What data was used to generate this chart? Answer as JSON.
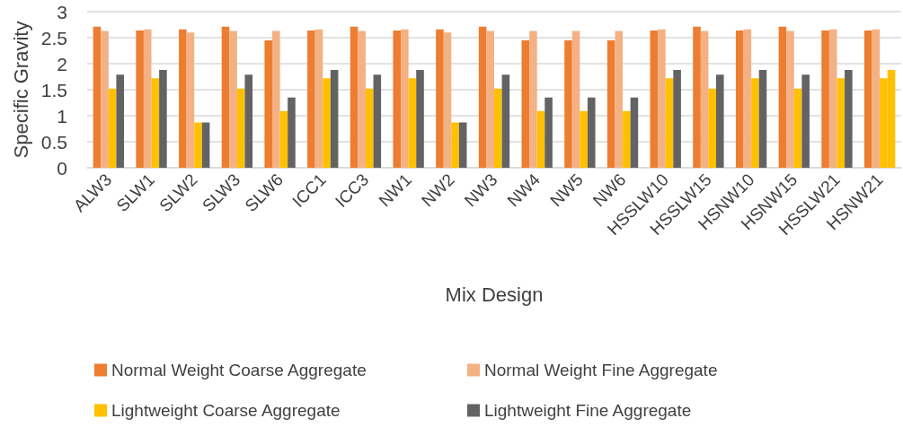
{
  "chart_data": {
    "type": "bar",
    "xlabel": "Mix Design",
    "ylabel": "Specific Gravity",
    "categories": [
      "ALW3",
      "SLW1",
      "SLW2",
      "SLW3",
      "SLW6",
      "ICC1",
      "ICC3",
      "NW1",
      "NW2",
      "NW3",
      "NW4",
      "NW5",
      "NW6",
      "HSSLW10",
      "HSSLW15",
      "HSNW10",
      "HSNW15",
      "HSSLW21",
      "HSNW21"
    ],
    "series": [
      {
        "name": "Normal Weight Coarse Aggregate",
        "color": "#ed7d31",
        "values": [
          2.71,
          2.64,
          2.66,
          2.71,
          2.45,
          2.64,
          2.71,
          2.64,
          2.66,
          2.71,
          2.45,
          2.45,
          2.45,
          2.64,
          2.71,
          2.64,
          2.71,
          2.64,
          2.64
        ]
      },
      {
        "name": "Normal Weight Fine Aggregate",
        "color": "#f4b183",
        "values": [
          2.63,
          2.66,
          2.6,
          2.63,
          2.63,
          2.66,
          2.63,
          2.66,
          2.6,
          2.63,
          2.63,
          2.63,
          2.63,
          2.66,
          2.63,
          2.66,
          2.63,
          2.66,
          2.66
        ]
      },
      {
        "name": "Lightweight Coarse Aggregate",
        "color": "#ffc000",
        "values": [
          1.52,
          1.72,
          0.87,
          1.52,
          1.09,
          1.72,
          1.52,
          1.72,
          0.87,
          1.52,
          1.09,
          1.09,
          1.09,
          1.72,
          1.52,
          1.72,
          1.52,
          1.72,
          1.72
        ]
      },
      {
        "name": "Lightweight Fine Aggregate",
        "color": "#636363",
        "colors": [
          "#636363",
          "#636363",
          "#636363",
          "#636363",
          "#636363",
          "#636363",
          "#636363",
          "#636363",
          "#636363",
          "#636363",
          "#636363",
          "#636363",
          "#636363",
          "#636363",
          "#636363",
          "#636363",
          "#636363",
          "#636363",
          "#ffc000"
        ],
        "values": [
          1.79,
          1.88,
          0.87,
          1.79,
          1.35,
          1.88,
          1.79,
          1.88,
          0.87,
          1.79,
          1.35,
          1.35,
          1.35,
          1.88,
          1.79,
          1.88,
          1.79,
          1.88,
          1.88
        ]
      }
    ],
    "ylim": [
      0,
      3
    ],
    "yticks": [
      0,
      0.5,
      1,
      1.5,
      2,
      2.5,
      3
    ],
    "grid": "y",
    "legend": "bottom"
  }
}
